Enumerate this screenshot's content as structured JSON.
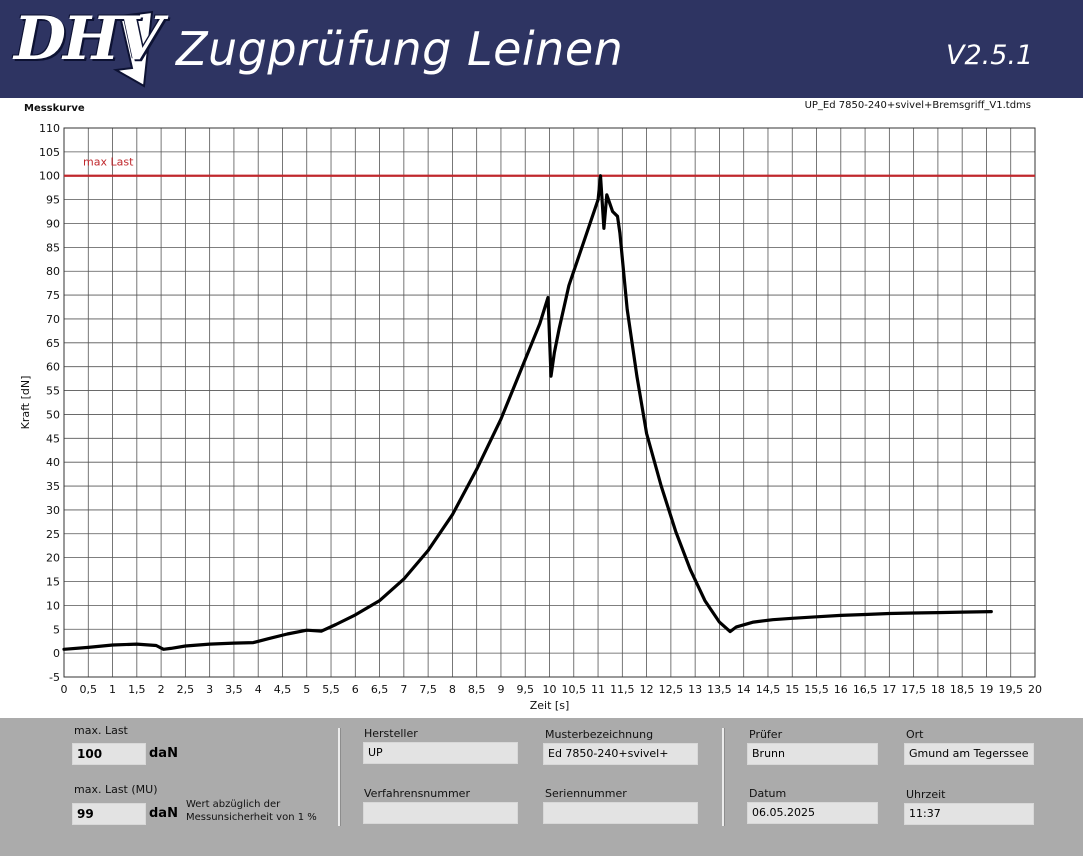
{
  "header": {
    "logo_text": "DHV",
    "app_title": "Zugprüfung Leinen",
    "version": "V2.5.1",
    "bg_color": "#2e3462"
  },
  "chart_panel": {
    "label": "Messkurve",
    "filename": "UP_Ed 7850-240+svivel+Bremsgriff_V1.tdms"
  },
  "chart_data": {
    "type": "line",
    "title": "",
    "xlabel": "Zeit [s]",
    "ylabel": "Kraft [dN]",
    "xlim": [
      0,
      20
    ],
    "ylim": [
      -5,
      110
    ],
    "x_ticks": [
      "0",
      "0,5",
      "1",
      "1,5",
      "2",
      "2,5",
      "3",
      "3,5",
      "4",
      "4,5",
      "5",
      "5,5",
      "6",
      "6,5",
      "7",
      "7,5",
      "8",
      "8,5",
      "9",
      "9,5",
      "10",
      "10,5",
      "11",
      "11,5",
      "12",
      "12,5",
      "13",
      "13,5",
      "14",
      "14,5",
      "15",
      "15,5",
      "16",
      "16,5",
      "17",
      "17,5",
      "18",
      "18,5",
      "19",
      "19,5",
      "20"
    ],
    "y_ticks": [
      "110",
      "105",
      "100",
      "95",
      "90",
      "85",
      "80",
      "75",
      "70",
      "65",
      "60",
      "55",
      "50",
      "45",
      "40",
      "35",
      "30",
      "25",
      "20",
      "15",
      "10",
      "5",
      "0",
      "-5"
    ],
    "grid": true,
    "max_line": {
      "label": "max Last",
      "value": 100,
      "color": "#c0282d"
    },
    "series": [
      {
        "color": "#000000",
        "points": [
          [
            0,
            0.8
          ],
          [
            0.5,
            1.2
          ],
          [
            1,
            1.7
          ],
          [
            1.5,
            1.9
          ],
          [
            1.9,
            1.6
          ],
          [
            2.05,
            0.8
          ],
          [
            2.2,
            1.0
          ],
          [
            2.5,
            1.5
          ],
          [
            3,
            1.9
          ],
          [
            3.5,
            2.1
          ],
          [
            3.9,
            2.2
          ],
          [
            4.2,
            3.0
          ],
          [
            4.6,
            4.0
          ],
          [
            5,
            4.8
          ],
          [
            5.3,
            4.6
          ],
          [
            5.6,
            6.0
          ],
          [
            6,
            8.0
          ],
          [
            6.5,
            11.0
          ],
          [
            7,
            15.5
          ],
          [
            7.5,
            21.5
          ],
          [
            8,
            29
          ],
          [
            8.5,
            38.5
          ],
          [
            9,
            49
          ],
          [
            9.5,
            61.5
          ],
          [
            9.8,
            69
          ],
          [
            9.97,
            74.5
          ],
          [
            10.03,
            58
          ],
          [
            10.1,
            63
          ],
          [
            10.2,
            68
          ],
          [
            10.4,
            77
          ],
          [
            10.7,
            86
          ],
          [
            11,
            95
          ],
          [
            11.05,
            100
          ],
          [
            11.12,
            89
          ],
          [
            11.18,
            96
          ],
          [
            11.3,
            92.5
          ],
          [
            11.4,
            91.5
          ],
          [
            11.45,
            88
          ],
          [
            11.6,
            72
          ],
          [
            11.8,
            58
          ],
          [
            12,
            46
          ],
          [
            12.3,
            35
          ],
          [
            12.6,
            25.5
          ],
          [
            12.9,
            17.5
          ],
          [
            13.2,
            11
          ],
          [
            13.5,
            6.5
          ],
          [
            13.72,
            4.5
          ],
          [
            13.85,
            5.5
          ],
          [
            14.2,
            6.5
          ],
          [
            14.6,
            7.0
          ],
          [
            15,
            7.3
          ],
          [
            15.5,
            7.6
          ],
          [
            16,
            7.9
          ],
          [
            16.5,
            8.1
          ],
          [
            17,
            8.3
          ],
          [
            17.5,
            8.4
          ],
          [
            18,
            8.5
          ],
          [
            18.5,
            8.6
          ],
          [
            19.1,
            8.7
          ]
        ]
      }
    ]
  },
  "form": {
    "max_last_label": "max. Last",
    "max_last_value": "100",
    "max_last_unit": "daN",
    "max_last_mu_label": "max. Last (MU)",
    "max_last_mu_value": "99",
    "max_last_mu_unit": "daN",
    "mu_note_line1": "Wert abzüglich der",
    "mu_note_line2": "Messunsicherheit von 1 %",
    "hersteller_label": "Hersteller",
    "hersteller_value": "UP",
    "musterbezeichnung_label": "Musterbezeichnung",
    "musterbezeichnung_value": "Ed 7850-240+svivel+",
    "verfahrensnummer_label": "Verfahrensnummer",
    "verfahrensnummer_value": "",
    "seriennummer_label": "Seriennummer",
    "seriennummer_value": "",
    "pruefer_label": "Prüfer",
    "pruefer_value": "Brunn",
    "ort_label": "Ort",
    "ort_value": "Gmund am Tegerssee",
    "datum_label": "Datum",
    "datum_value": "06.05.2025",
    "uhrzeit_label": "Uhrzeit",
    "uhrzeit_value": "11:37"
  }
}
